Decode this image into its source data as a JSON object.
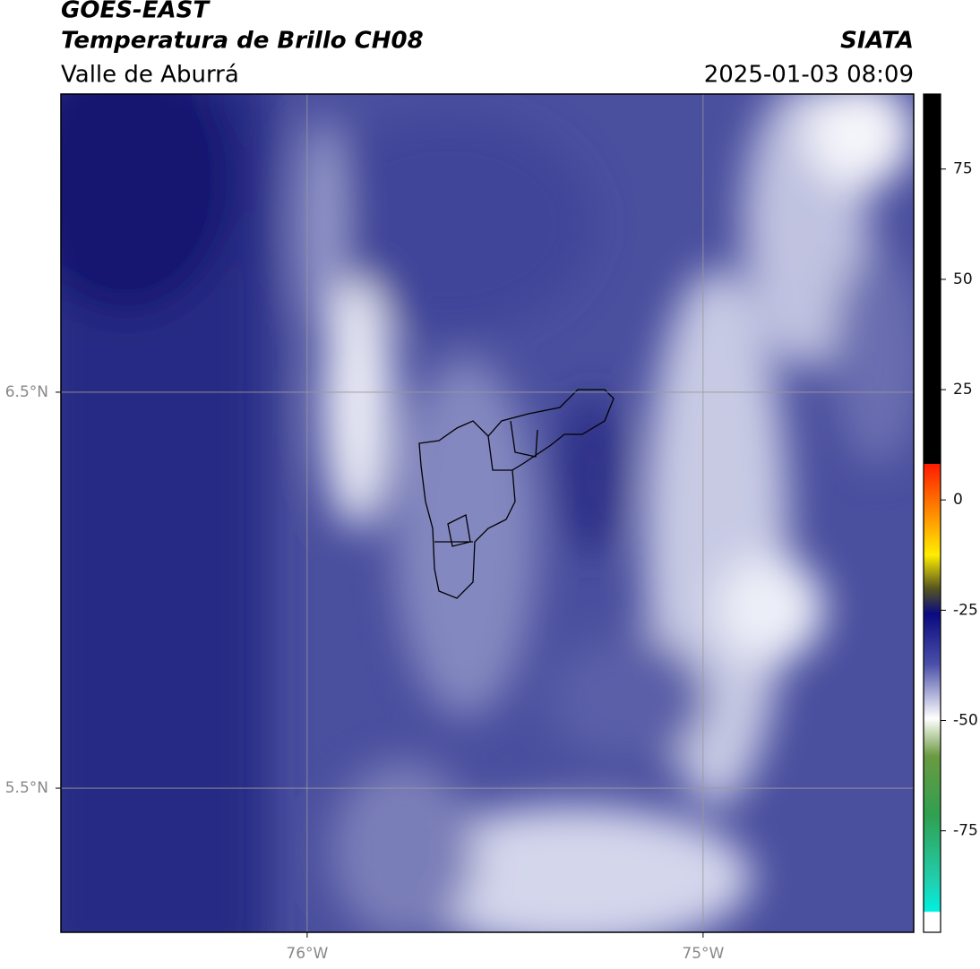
{
  "header": {
    "title": "GOES-EAST",
    "subtitle": "Temperatura de Brillo CH08",
    "source": "SIATA",
    "region": "Valle de Aburrá",
    "datetime": "2025-01-03 08:09"
  },
  "map": {
    "xlim": [
      -76.622,
      -74.468
    ],
    "ylim": [
      5.136,
      7.253
    ],
    "xticks": [
      {
        "value": -76,
        "label": "76°W"
      },
      {
        "value": -75,
        "label": "75°W"
      }
    ],
    "yticks": [
      {
        "value": 6.5,
        "label": "6.5°N"
      },
      {
        "value": 5.5,
        "label": "5.5°N"
      }
    ],
    "grid": true
  },
  "colorbar": {
    "lim": [
      -98,
      92
    ],
    "ticks": [
      75,
      50,
      25,
      0,
      -25,
      -50,
      -75
    ]
  }
}
